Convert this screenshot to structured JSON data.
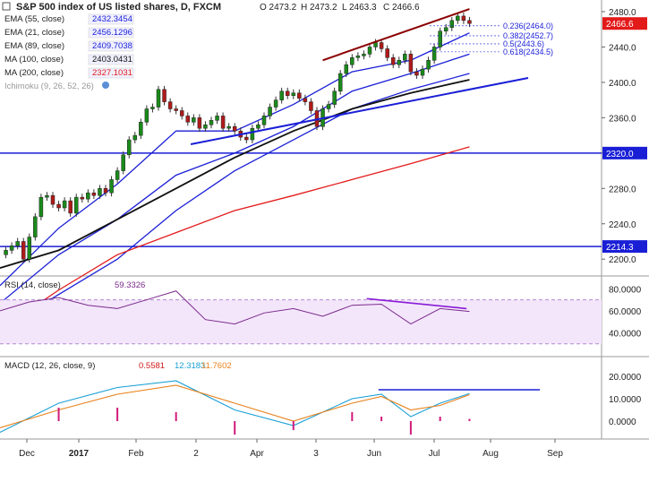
{
  "title": "S&P 500 index of US listed shares, D, FXCM",
  "ohlc": {
    "o": "O 2473.2",
    "h": "H 2473.2",
    "l": "L 2463.3",
    "c": "C 2466.6"
  },
  "legend": [
    {
      "label": "EMA (55, close)",
      "value": "2432.3454",
      "color": "#1a1fd6"
    },
    {
      "label": "EMA (21, close)",
      "value": "2456.1296",
      "color": "#1a1fd6"
    },
    {
      "label": "EMA (89, close)",
      "value": "2409.7038",
      "color": "#1a1fd6"
    },
    {
      "label": "MA (100, close)",
      "value": "2403.0431",
      "color": "#111111"
    },
    {
      "label": "MA (200, close)",
      "value": "2327.1031",
      "color": "#e31a1a"
    },
    {
      "label": "Ichimoku (9, 26, 52, 26)",
      "value": "",
      "color": "#999999"
    }
  ],
  "price_axis": {
    "ticks": [
      "2480.0",
      "2440.0",
      "2400.0",
      "2360.0",
      "2320.0",
      "2280.0",
      "2240.0",
      "2200.0"
    ],
    "last_price": "2466.6",
    "level_1": "2320.0",
    "level_2": "2214.3"
  },
  "fib": [
    "0.236(2464.0)",
    "0.382(2452.7)",
    "0.5(2443.6)",
    "0.618(2434.5)"
  ],
  "rsi": {
    "label": "RSI (14, close)",
    "value": "59.3326",
    "ticks": [
      "80.0000",
      "60.0000",
      "40.0000"
    ]
  },
  "macd": {
    "label": "MACD (12, 26, close, 9)",
    "v1": "0.5581",
    "v2": "12.3183",
    "v3": "11.7602",
    "ticks": [
      "20.0000",
      "10.0000",
      "0.0000"
    ]
  },
  "x_axis": [
    "Dec",
    "2017",
    "Feb",
    "2",
    "Apr",
    "3",
    "Jun",
    "Jul",
    "Aug",
    "Sep"
  ],
  "chart_data": {
    "type": "candlestick",
    "title": "S&P 500 index of US listed shares, D, FXCM",
    "x_labels": [
      "Dec",
      "2017",
      "Feb",
      "2",
      "Apr",
      "3",
      "Jun",
      "Jul",
      "Aug",
      "Sep"
    ],
    "y_ticks": [
      2480,
      2440,
      2400,
      2360,
      2320,
      2280,
      2240,
      2200
    ],
    "horizontal_levels": [
      2320.0,
      2214.3
    ],
    "last_close": 2466.6,
    "close_path": [
      [
        0,
        2205
      ],
      [
        4,
        2210
      ],
      [
        8,
        2215
      ],
      [
        12,
        2220
      ],
      [
        16,
        2200
      ],
      [
        20,
        2225
      ],
      [
        24,
        2248
      ],
      [
        28,
        2270
      ],
      [
        32,
        2272
      ],
      [
        36,
        2262
      ],
      [
        40,
        2258
      ],
      [
        44,
        2266
      ],
      [
        48,
        2252
      ],
      [
        52,
        2270
      ],
      [
        56,
        2268
      ],
      [
        60,
        2275
      ],
      [
        64,
        2272
      ],
      [
        68,
        2280
      ],
      [
        72,
        2275
      ],
      [
        76,
        2290
      ],
      [
        80,
        2300
      ],
      [
        84,
        2318
      ],
      [
        88,
        2335
      ],
      [
        92,
        2340
      ],
      [
        96,
        2355
      ],
      [
        100,
        2370
      ],
      [
        104,
        2372
      ],
      [
        108,
        2392
      ],
      [
        112,
        2378
      ],
      [
        116,
        2370
      ],
      [
        120,
        2368
      ],
      [
        124,
        2362
      ],
      [
        128,
        2355
      ],
      [
        132,
        2360
      ],
      [
        136,
        2348
      ],
      [
        140,
        2352
      ],
      [
        144,
        2357
      ],
      [
        148,
        2362
      ],
      [
        152,
        2348
      ],
      [
        156,
        2350
      ],
      [
        160,
        2345
      ],
      [
        164,
        2338
      ],
      [
        168,
        2335
      ],
      [
        172,
        2348
      ],
      [
        176,
        2352
      ],
      [
        180,
        2362
      ],
      [
        184,
        2372
      ],
      [
        188,
        2380
      ],
      [
        192,
        2390
      ],
      [
        196,
        2385
      ],
      [
        200,
        2388
      ],
      [
        204,
        2382
      ],
      [
        208,
        2378
      ],
      [
        212,
        2368
      ],
      [
        216,
        2350
      ],
      [
        220,
        2370
      ],
      [
        224,
        2375
      ],
      [
        228,
        2390
      ],
      [
        232,
        2410
      ],
      [
        236,
        2420
      ],
      [
        240,
        2428
      ],
      [
        244,
        2430
      ],
      [
        248,
        2432
      ],
      [
        252,
        2440
      ],
      [
        256,
        2445
      ],
      [
        260,
        2438
      ],
      [
        264,
        2428
      ],
      [
        268,
        2420
      ],
      [
        272,
        2425
      ],
      [
        276,
        2432
      ],
      [
        280,
        2412
      ],
      [
        284,
        2408
      ],
      [
        288,
        2415
      ],
      [
        292,
        2425
      ],
      [
        296,
        2440
      ],
      [
        300,
        2458
      ],
      [
        304,
        2462
      ],
      [
        308,
        2470
      ],
      [
        312,
        2475
      ],
      [
        316,
        2470
      ],
      [
        320,
        2466.6
      ]
    ],
    "series": [
      {
        "name": "EMA (21, close)",
        "color": "#1a1fd6",
        "points": [
          [
            0,
            2170
          ],
          [
            40,
            2235
          ],
          [
            80,
            2285
          ],
          [
            120,
            2345
          ],
          [
            160,
            2345
          ],
          [
            200,
            2375
          ],
          [
            240,
            2412
          ],
          [
            280,
            2425
          ],
          [
            320,
            2456
          ]
        ]
      },
      {
        "name": "EMA (55, close)",
        "color": "#1a1fd6",
        "points": [
          [
            0,
            2150
          ],
          [
            40,
            2205
          ],
          [
            80,
            2245
          ],
          [
            120,
            2295
          ],
          [
            160,
            2320
          ],
          [
            200,
            2350
          ],
          [
            240,
            2390
          ],
          [
            280,
            2410
          ],
          [
            320,
            2432
          ]
        ]
      },
      {
        "name": "EMA (89, close)",
        "color": "#1a1fd6",
        "points": [
          [
            0,
            2120
          ],
          [
            40,
            2160
          ],
          [
            80,
            2200
          ],
          [
            120,
            2255
          ],
          [
            160,
            2300
          ],
          [
            200,
            2335
          ],
          [
            240,
            2370
          ],
          [
            280,
            2392
          ],
          [
            320,
            2410
          ]
        ]
      },
      {
        "name": "MA (100, close)",
        "color": "#111111",
        "points": [
          [
            0,
            2190
          ],
          [
            40,
            2210
          ],
          [
            80,
            2245
          ],
          [
            120,
            2280
          ],
          [
            160,
            2315
          ],
          [
            200,
            2345
          ],
          [
            240,
            2370
          ],
          [
            280,
            2388
          ],
          [
            320,
            2403
          ]
        ]
      },
      {
        "name": "MA (200, close)",
        "color": "#e31a1a",
        "points": [
          [
            0,
            2120
          ],
          [
            40,
            2165
          ],
          [
            80,
            2205
          ],
          [
            120,
            2230
          ],
          [
            160,
            2255
          ],
          [
            200,
            2272
          ],
          [
            240,
            2290
          ],
          [
            280,
            2308
          ],
          [
            320,
            2327
          ]
        ]
      }
    ],
    "trendlines": [
      {
        "color": "#8b0000",
        "points": [
          [
            220,
            2425
          ],
          [
            320,
            2483
          ]
        ]
      },
      {
        "color": "#1a1fd6",
        "points": [
          [
            130,
            2330
          ],
          [
            360,
            2405
          ]
        ]
      }
    ],
    "rsi_line": [
      [
        0,
        60
      ],
      [
        20,
        68
      ],
      [
        40,
        72
      ],
      [
        60,
        65
      ],
      [
        80,
        62
      ],
      [
        100,
        70
      ],
      [
        120,
        78
      ],
      [
        140,
        52
      ],
      [
        160,
        48
      ],
      [
        180,
        58
      ],
      [
        200,
        62
      ],
      [
        220,
        55
      ],
      [
        240,
        65
      ],
      [
        260,
        66
      ],
      [
        280,
        48
      ],
      [
        300,
        62
      ],
      [
        320,
        59.33
      ]
    ],
    "macd_line": [
      [
        0,
        -5
      ],
      [
        40,
        8
      ],
      [
        80,
        15
      ],
      [
        120,
        18
      ],
      [
        160,
        5
      ],
      [
        200,
        -2
      ],
      [
        240,
        10
      ],
      [
        260,
        12
      ],
      [
        280,
        2
      ],
      [
        300,
        8
      ],
      [
        320,
        12.3
      ]
    ],
    "signal_line": [
      [
        0,
        -3
      ],
      [
        40,
        5
      ],
      [
        80,
        12
      ],
      [
        120,
        16
      ],
      [
        160,
        8
      ],
      [
        200,
        0
      ],
      [
        240,
        8
      ],
      [
        260,
        11
      ],
      [
        280,
        5
      ],
      [
        300,
        7
      ],
      [
        320,
        11.8
      ]
    ]
  }
}
